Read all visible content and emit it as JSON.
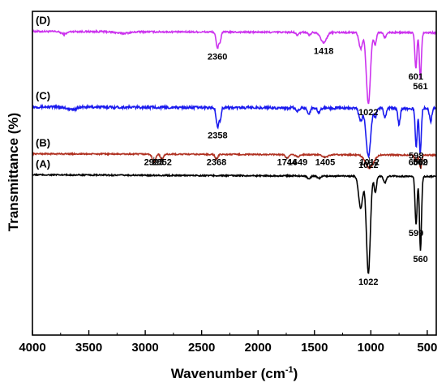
{
  "chart_data": {
    "type": "line",
    "xlabel": "Wavenumber (cm",
    "xlabel_sup": "-1",
    "xlabel_tail": ")",
    "ylabel": "Transmittance (%)",
    "xlim": [
      4000,
      420
    ],
    "x_ticks": [
      4000,
      3500,
      3000,
      2500,
      2000,
      1500,
      1000,
      500
    ],
    "x_tick_labels": [
      "4000",
      "3500",
      "3000",
      "2500",
      "2000",
      "1500",
      "1000",
      "500"
    ],
    "y_ticks_shown": false,
    "ylim": [
      0,
      100
    ],
    "series": [
      {
        "name": "(D)",
        "color": "#cc33ee",
        "baseline": 93.8,
        "slope": -0.4,
        "noise": 0.5,
        "peaks": [
          {
            "x": 3720,
            "depth": 0.8,
            "width": 25
          },
          {
            "x": 3200,
            "depth": 0.5,
            "width": 60
          },
          {
            "x": 2360,
            "depth": 5.0,
            "width": 12
          },
          {
            "x": 2335,
            "depth": 2.5,
            "width": 8
          },
          {
            "x": 1650,
            "depth": 0.8,
            "width": 15
          },
          {
            "x": 1545,
            "depth": 0.8,
            "width": 12
          },
          {
            "x": 1418,
            "depth": 3.2,
            "width": 25
          },
          {
            "x": 1090,
            "depth": 5.0,
            "width": 15
          },
          {
            "x": 1022,
            "depth": 22.0,
            "width": 18
          },
          {
            "x": 962,
            "depth": 4.0,
            "width": 10
          },
          {
            "x": 875,
            "depth": 1.5,
            "width": 12
          },
          {
            "x": 601,
            "depth": 11.0,
            "width": 9
          },
          {
            "x": 561,
            "depth": 14.0,
            "width": 9
          }
        ]
      },
      {
        "name": "(C)",
        "color": "#1a1aee",
        "baseline": 70.5,
        "slope": -0.5,
        "noise": 0.8,
        "peaks": [
          {
            "x": 3650,
            "depth": 0.8,
            "width": 40
          },
          {
            "x": 2358,
            "depth": 6.0,
            "width": 12
          },
          {
            "x": 2333,
            "depth": 3.0,
            "width": 8
          },
          {
            "x": 1650,
            "depth": 1.0,
            "width": 15
          },
          {
            "x": 1550,
            "depth": 1.8,
            "width": 12
          },
          {
            "x": 1460,
            "depth": 1.4,
            "width": 12
          },
          {
            "x": 1090,
            "depth": 4.0,
            "width": 15
          },
          {
            "x": 1022,
            "depth": 15.0,
            "width": 20
          },
          {
            "x": 960,
            "depth": 3.0,
            "width": 10
          },
          {
            "x": 875,
            "depth": 3.0,
            "width": 10
          },
          {
            "x": 750,
            "depth": 5.0,
            "width": 10
          },
          {
            "x": 598,
            "depth": 12.0,
            "width": 9
          },
          {
            "x": 562,
            "depth": 14.0,
            "width": 9
          },
          {
            "x": 470,
            "depth": 4.0,
            "width": 10
          }
        ]
      },
      {
        "name": "(B)",
        "color": "#b03020",
        "baseline": 56.0,
        "slope": -0.4,
        "noise": 0.4,
        "peaks": [
          {
            "x": 2923,
            "depth": 2.5,
            "width": 14
          },
          {
            "x": 2852,
            "depth": 1.8,
            "width": 12
          },
          {
            "x": 2368,
            "depth": 1.5,
            "width": 12
          },
          {
            "x": 1744,
            "depth": 1.2,
            "width": 12
          },
          {
            "x": 1649,
            "depth": 0.7,
            "width": 15
          },
          {
            "x": 1405,
            "depth": 0.8,
            "width": 25
          },
          {
            "x": 1012,
            "depth": 4.0,
            "width": 35
          },
          {
            "x": 600,
            "depth": 2.0,
            "width": 12
          },
          {
            "x": 559,
            "depth": 4.0,
            "width": 10
          }
        ]
      },
      {
        "name": "(A)",
        "color": "#000000",
        "baseline": 49.5,
        "slope": -0.5,
        "noise": 0.4,
        "peaks": [
          {
            "x": 1550,
            "depth": 0.8,
            "width": 15
          },
          {
            "x": 1460,
            "depth": 0.7,
            "width": 15
          },
          {
            "x": 1090,
            "depth": 10.0,
            "width": 18
          },
          {
            "x": 1022,
            "depth": 30.0,
            "width": 17
          },
          {
            "x": 960,
            "depth": 5.0,
            "width": 10
          },
          {
            "x": 875,
            "depth": 2.0,
            "width": 12
          },
          {
            "x": 599,
            "depth": 15.0,
            "width": 9
          },
          {
            "x": 560,
            "depth": 23.0,
            "width": 9
          }
        ]
      }
    ],
    "annotations": [
      {
        "series": "(D)",
        "text": "2360",
        "x": 2360
      },
      {
        "series": "(D)",
        "text": "1418",
        "x": 1418
      },
      {
        "series": "(D)",
        "text": "1022",
        "x": 1022
      },
      {
        "series": "(D)",
        "text": "601",
        "x": 601
      },
      {
        "series": "(D)",
        "text": "561",
        "x": 561
      },
      {
        "series": "(C)",
        "text": "2358",
        "x": 2358
      },
      {
        "series": "(C)",
        "text": "1022",
        "x": 1022
      },
      {
        "series": "(C)",
        "text": "598",
        "x": 598
      },
      {
        "series": "(C)",
        "text": "562",
        "x": 562
      },
      {
        "series": "(B)",
        "text": "2923",
        "x": 2923
      },
      {
        "series": "(B)",
        "text": "2852",
        "x": 2852
      },
      {
        "series": "(B)",
        "text": "2368",
        "x": 2368
      },
      {
        "series": "(B)",
        "text": "1744",
        "x": 1744
      },
      {
        "series": "(B)",
        "text": "1649",
        "x": 1649
      },
      {
        "series": "(B)",
        "text": "1405",
        "x": 1405
      },
      {
        "series": "(B)",
        "text": "1012",
        "x": 1012
      },
      {
        "series": "(B)",
        "text": "600",
        "x": 600
      },
      {
        "series": "(B)",
        "text": "559",
        "x": 559
      },
      {
        "series": "(A)",
        "text": "1022",
        "x": 1022
      },
      {
        "series": "(A)",
        "text": "599",
        "x": 599
      },
      {
        "series": "(A)",
        "text": "560",
        "x": 560
      }
    ]
  }
}
